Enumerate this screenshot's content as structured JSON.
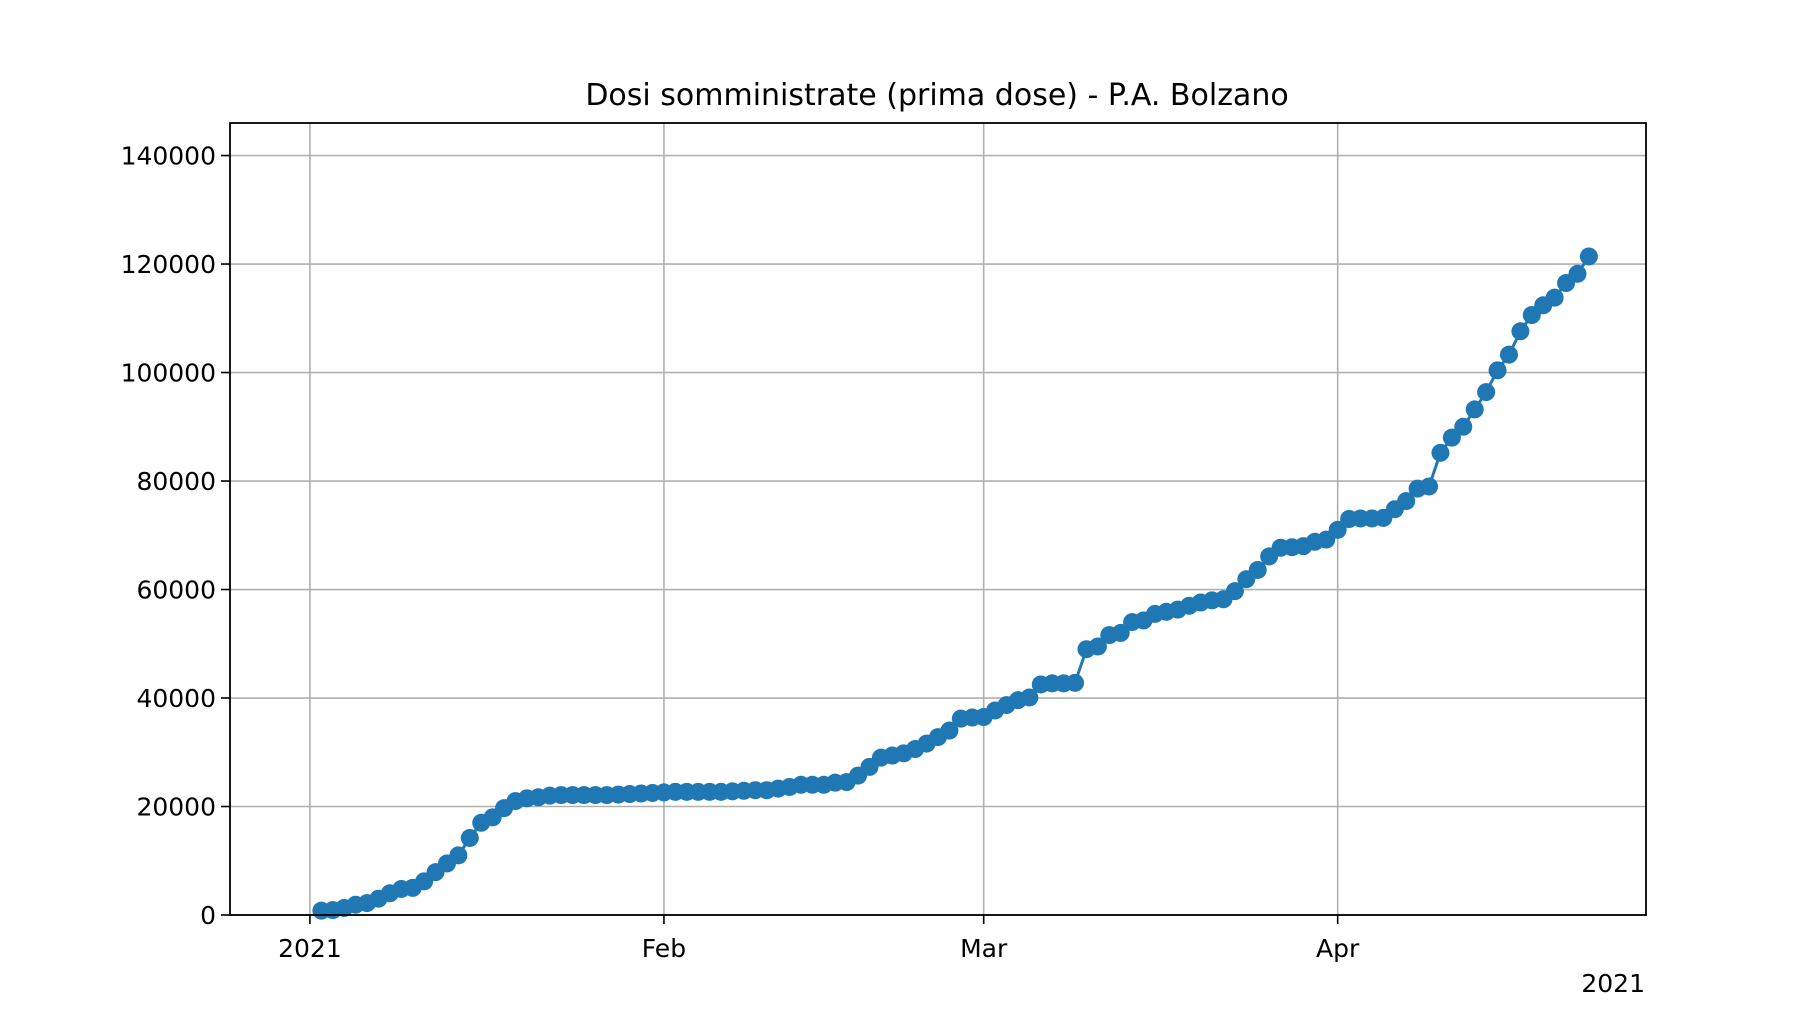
{
  "chart_data": {
    "type": "line",
    "title": "Dosi somministrate (prima dose) - P.A. Bolzano",
    "xlabel": "",
    "ylabel": "",
    "x_axis": {
      "kind": "date",
      "range": [
        "2020-12-25",
        "2021-04-28"
      ],
      "ticks": [
        {
          "value": "2021-01-01",
          "label": "2021"
        },
        {
          "value": "2021-02-01",
          "label": "Feb"
        },
        {
          "value": "2021-03-01",
          "label": "Mar"
        },
        {
          "value": "2021-04-01",
          "label": "Apr"
        }
      ],
      "offset_label": "2021"
    },
    "y_axis": {
      "range": [
        0,
        146000
      ],
      "ticks": [
        0,
        20000,
        40000,
        60000,
        80000,
        100000,
        120000,
        140000
      ]
    },
    "grid": true,
    "colors": {
      "series": "#1f77b4",
      "grid": "#b0b0b0",
      "axes": "#000000"
    },
    "series": [
      {
        "marker": "circle",
        "x": [
          "2021-01-02",
          "2021-01-03",
          "2021-01-04",
          "2021-01-05",
          "2021-01-06",
          "2021-01-07",
          "2021-01-08",
          "2021-01-09",
          "2021-01-10",
          "2021-01-11",
          "2021-01-12",
          "2021-01-13",
          "2021-01-14",
          "2021-01-15",
          "2021-01-16",
          "2021-01-17",
          "2021-01-18",
          "2021-01-19",
          "2021-01-20",
          "2021-01-21",
          "2021-01-22",
          "2021-01-23",
          "2021-01-24",
          "2021-01-25",
          "2021-01-26",
          "2021-01-27",
          "2021-01-28",
          "2021-01-29",
          "2021-01-30",
          "2021-01-31",
          "2021-02-01",
          "2021-02-02",
          "2021-02-03",
          "2021-02-04",
          "2021-02-05",
          "2021-02-06",
          "2021-02-07",
          "2021-02-08",
          "2021-02-09",
          "2021-02-10",
          "2021-02-11",
          "2021-02-12",
          "2021-02-13",
          "2021-02-14",
          "2021-02-15",
          "2021-02-16",
          "2021-02-17",
          "2021-02-18",
          "2021-02-19",
          "2021-02-20",
          "2021-02-21",
          "2021-02-22",
          "2021-02-23",
          "2021-02-24",
          "2021-02-25",
          "2021-02-26",
          "2021-02-27",
          "2021-02-28",
          "2021-03-01",
          "2021-03-02",
          "2021-03-03",
          "2021-03-04",
          "2021-03-05",
          "2021-03-06",
          "2021-03-07",
          "2021-03-08",
          "2021-03-09",
          "2021-03-10",
          "2021-03-11",
          "2021-03-12",
          "2021-03-13",
          "2021-03-14",
          "2021-03-15",
          "2021-03-16",
          "2021-03-17",
          "2021-03-18",
          "2021-03-19",
          "2021-03-20",
          "2021-03-21",
          "2021-03-22",
          "2021-03-23",
          "2021-03-24",
          "2021-03-25",
          "2021-03-26",
          "2021-03-27",
          "2021-03-28",
          "2021-03-29",
          "2021-03-30",
          "2021-03-31",
          "2021-04-01",
          "2021-04-02",
          "2021-04-03",
          "2021-04-04",
          "2021-04-05",
          "2021-04-06",
          "2021-04-07",
          "2021-04-08",
          "2021-04-09",
          "2021-04-10",
          "2021-04-11",
          "2021-04-12",
          "2021-04-13",
          "2021-04-14",
          "2021-04-15",
          "2021-04-16",
          "2021-04-17",
          "2021-04-18",
          "2021-04-19",
          "2021-04-20",
          "2021-04-21",
          "2021-04-22",
          "2021-04-23"
        ],
        "y": [
          800,
          900,
          1300,
          1900,
          2200,
          3000,
          4000,
          4800,
          5000,
          6200,
          7900,
          9500,
          11000,
          14200,
          17000,
          18000,
          19700,
          21000,
          21500,
          21700,
          22000,
          22100,
          22100,
          22100,
          22100,
          22100,
          22200,
          22300,
          22400,
          22500,
          22600,
          22700,
          22700,
          22700,
          22700,
          22700,
          22800,
          22900,
          23000,
          23000,
          23300,
          23600,
          24000,
          24000,
          24000,
          24400,
          24500,
          25700,
          27300,
          29000,
          29400,
          29800,
          30600,
          31600,
          32800,
          34000,
          36200,
          36400,
          36500,
          37700,
          38700,
          39600,
          40100,
          42500,
          42700,
          42700,
          42800,
          49000,
          49500,
          51600,
          52000,
          54000,
          54300,
          55500,
          55900,
          56300,
          57000,
          57600,
          58000,
          58200,
          59700,
          61900,
          63600,
          66100,
          67700,
          67800,
          68000,
          68800,
          69200,
          71000,
          73000,
          73100,
          73100,
          73200,
          74800,
          76300,
          78600,
          79000,
          85200,
          88000,
          90000,
          93200,
          96400,
          100400,
          103300,
          107600,
          110600,
          112400,
          113800,
          116500,
          118200,
          121400
        ]
      }
    ]
  }
}
